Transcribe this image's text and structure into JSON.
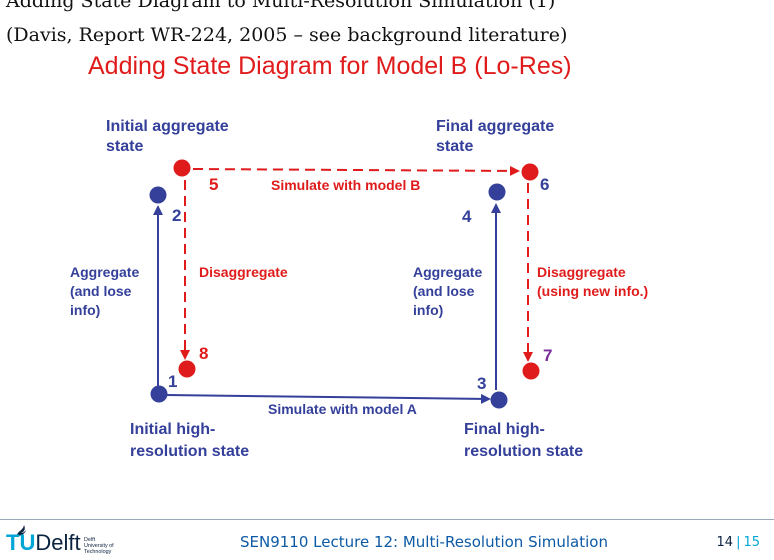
{
  "header": {
    "top_partial_line": "Adding State Diagram to Multi-Resolution Simulation (1)",
    "citation": "(Davis, Report WR-224, 2005 – see background literature)"
  },
  "title": "Adding State Diagram for Model B (Lo-Res)",
  "diagram": {
    "colors": {
      "blue": "#34409a",
      "red": "#e01b1b",
      "purple": "#7a2f9a"
    },
    "labels": {
      "initial_aggregate": [
        "Initial aggregate",
        "state"
      ],
      "final_aggregate": [
        "Final aggregate",
        "state"
      ],
      "initial_high": [
        "Initial high-",
        "resolution state"
      ],
      "final_high": [
        "Final high-",
        "resolution state"
      ],
      "simulate_b": "Simulate with model B",
      "simulate_a": "Simulate with model A",
      "aggregate_left": [
        "Aggregate",
        "(and lose",
        "info)"
      ],
      "aggregate_right": [
        "Aggregate",
        "(and lose",
        "info)"
      ],
      "disaggregate_left": "Disaggregate",
      "disaggregate_right": [
        "Disaggregate",
        "(using new info.)"
      ]
    },
    "states": [
      {
        "number": "1",
        "color": "blue"
      },
      {
        "number": "2",
        "color": "blue"
      },
      {
        "number": "3",
        "color": "blue"
      },
      {
        "number": "4",
        "color": "blue"
      },
      {
        "number": "5",
        "color": "red"
      },
      {
        "number": "6",
        "color": "red"
      },
      {
        "number": "7",
        "color": "red"
      },
      {
        "number": "8",
        "color": "red"
      }
    ]
  },
  "footer": {
    "logo_text_a": "TU",
    "logo_text_b": "Delft",
    "logo_small": [
      "Delft",
      "University of",
      "Technology"
    ],
    "lecture": "SEN9110 Lecture 12: Multi-Resolution Simulation",
    "page": "14",
    "total": "15"
  }
}
